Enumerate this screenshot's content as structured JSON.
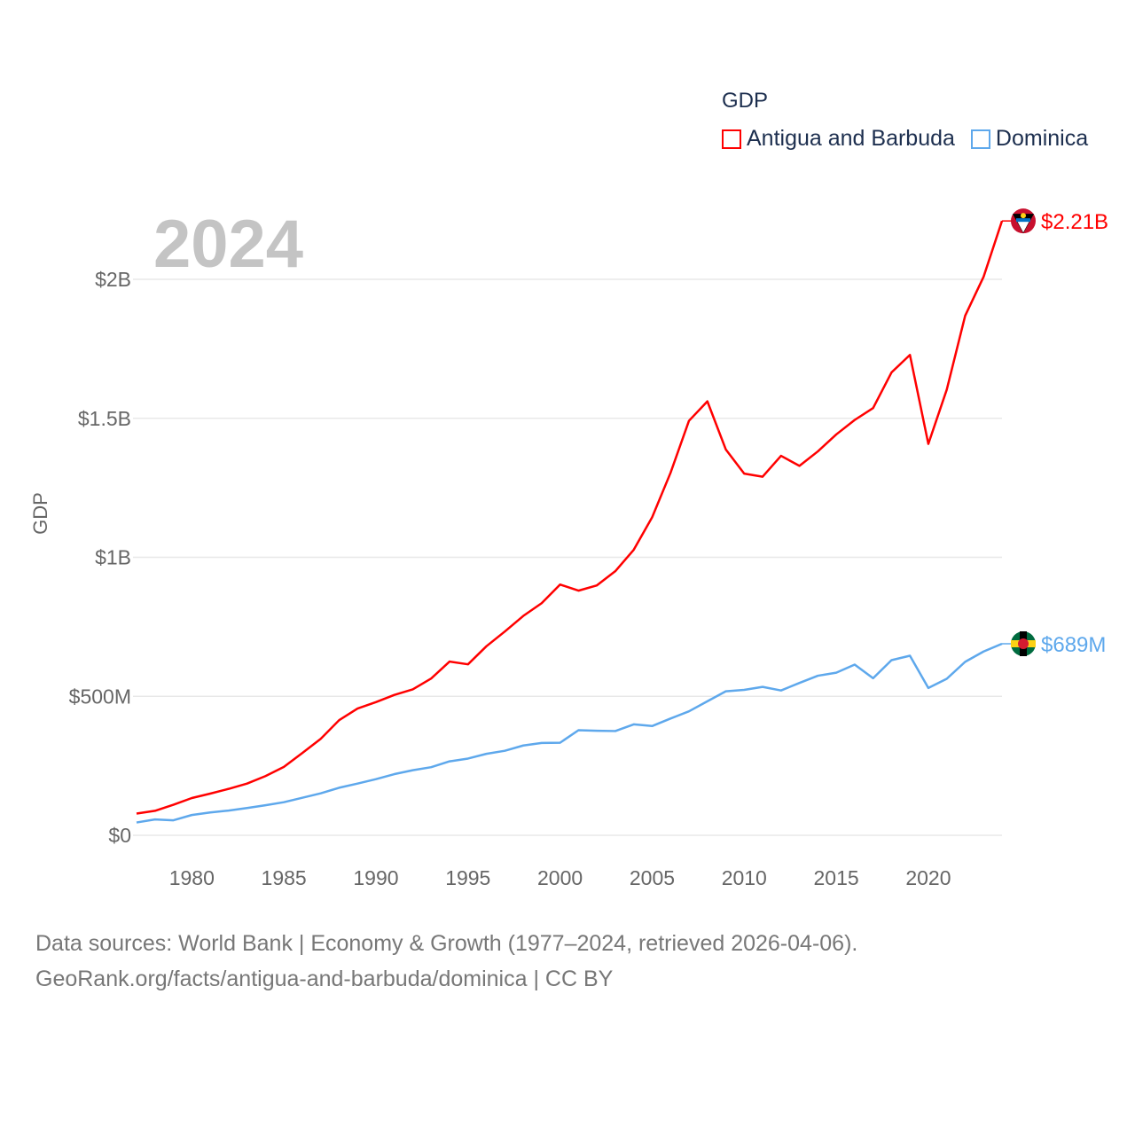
{
  "legend": {
    "title": "GDP",
    "items": [
      {
        "label": "Antigua and Barbuda",
        "color": "#ff0000"
      },
      {
        "label": "Dominica",
        "color": "#5ea8ec"
      }
    ]
  },
  "year_overlay": "2024",
  "footer": {
    "line1": "Data sources: World Bank | Economy & Growth (1977–2024, retrieved 2026-04-06).",
    "line2": "GeoRank.org/facts/antigua-and-barbuda/dominica | CC BY"
  },
  "chart_data": {
    "type": "line",
    "ylabel": "GDP",
    "xlabel": "",
    "xlim": [
      1977,
      2024
    ],
    "ylim": [
      0,
      2.25
    ],
    "y_unit": "billions USD",
    "grid": true,
    "legend_position": "top-right",
    "x_ticks": [
      1980,
      1985,
      1990,
      1995,
      2000,
      2005,
      2010,
      2015,
      2020
    ],
    "y_ticks": [
      {
        "value": 0,
        "label": "$0"
      },
      {
        "value": 0.5,
        "label": "$500M"
      },
      {
        "value": 1,
        "label": "$1B"
      },
      {
        "value": 1.5,
        "label": "$1.5B"
      },
      {
        "value": 2,
        "label": "$2B"
      }
    ],
    "x": [
      1977,
      1978,
      1979,
      1980,
      1981,
      1982,
      1983,
      1984,
      1985,
      1986,
      1987,
      1988,
      1989,
      1990,
      1991,
      1992,
      1993,
      1994,
      1995,
      1996,
      1997,
      1998,
      1999,
      2000,
      2001,
      2002,
      2003,
      2004,
      2005,
      2006,
      2007,
      2008,
      2009,
      2010,
      2011,
      2012,
      2013,
      2014,
      2015,
      2016,
      2017,
      2018,
      2019,
      2020,
      2021,
      2022,
      2023,
      2024
    ],
    "series": [
      {
        "name": "Antigua and Barbuda",
        "color": "#ff0000",
        "end_label": "$2.21B",
        "values": [
          0.078,
          0.088,
          0.11,
          0.134,
          0.15,
          0.167,
          0.186,
          0.213,
          0.246,
          0.296,
          0.347,
          0.414,
          0.456,
          0.479,
          0.505,
          0.525,
          0.564,
          0.625,
          0.615,
          0.68,
          0.733,
          0.789,
          0.835,
          0.902,
          0.88,
          0.899,
          0.95,
          1.027,
          1.144,
          1.304,
          1.491,
          1.561,
          1.388,
          1.301,
          1.29,
          1.365,
          1.329,
          1.381,
          1.442,
          1.494,
          1.537,
          1.665,
          1.728,
          1.408,
          1.603,
          1.869,
          2.009,
          2.21
        ]
      },
      {
        "name": "Dominica",
        "color": "#5ea8ec",
        "end_label": "$689M",
        "values": [
          0.046,
          0.057,
          0.054,
          0.073,
          0.082,
          0.089,
          0.098,
          0.108,
          0.119,
          0.135,
          0.151,
          0.171,
          0.186,
          0.202,
          0.22,
          0.234,
          0.245,
          0.266,
          0.276,
          0.293,
          0.304,
          0.323,
          0.332,
          0.333,
          0.378,
          0.376,
          0.375,
          0.399,
          0.393,
          0.42,
          0.446,
          0.482,
          0.518,
          0.523,
          0.534,
          0.521,
          0.548,
          0.574,
          0.585,
          0.614,
          0.565,
          0.63,
          0.646,
          0.53,
          0.563,
          0.624,
          0.661,
          0.689
        ]
      }
    ]
  }
}
